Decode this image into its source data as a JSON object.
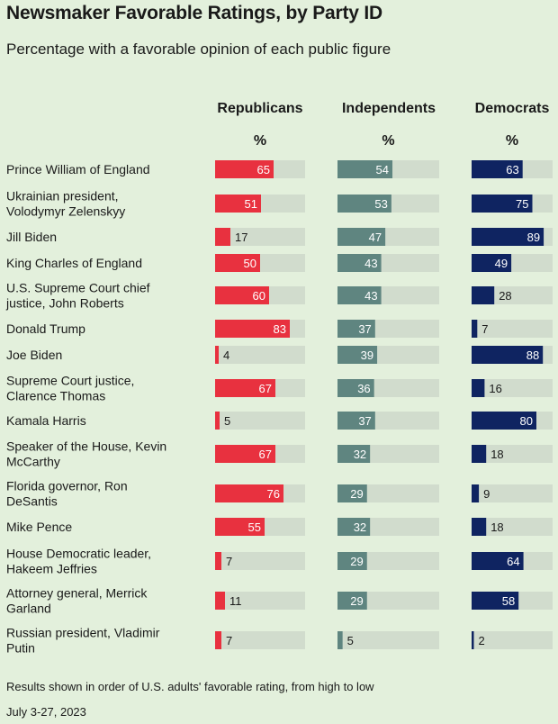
{
  "chart_data": {
    "type": "bar",
    "title": "Newsmaker Favorable Ratings, by Party ID",
    "subtitle": "Percentage with a favorable opinion of each public figure",
    "unit_label": "%",
    "xlim": [
      0,
      100
    ],
    "categories": [
      "Prince William of England",
      "Ukrainian president, Volodymyr Zelenskyy",
      "Jill Biden",
      "King Charles of England",
      "U.S. Supreme Court chief justice, John Roberts",
      "Donald Trump",
      "Joe Biden",
      "Supreme Court justice, Clarence Thomas",
      "Kamala Harris",
      "Speaker of the House, Kevin McCarthy",
      "Florida governor, Ron DeSantis",
      "Mike Pence",
      "House Democratic leader, Hakeem Jeffries",
      "Attorney general, Merrick Garland",
      "Russian president, Vladimir Putin"
    ],
    "category_lines": [
      [
        "Prince William of England"
      ],
      [
        "Ukrainian president,",
        "Volodymyr Zelenskyy"
      ],
      [
        "Jill Biden"
      ],
      [
        "King Charles of England"
      ],
      [
        "U.S. Supreme Court chief",
        "justice, John Roberts"
      ],
      [
        "Donald Trump"
      ],
      [
        "Joe Biden"
      ],
      [
        "Supreme Court justice,",
        "Clarence Thomas"
      ],
      [
        "Kamala Harris"
      ],
      [
        "Speaker of the House, Kevin",
        "McCarthy"
      ],
      [
        "Florida governor, Ron",
        "DeSantis"
      ],
      [
        "Mike Pence"
      ],
      [
        "House Democratic leader,",
        "Hakeem Jeffries"
      ],
      [
        "Attorney general, Merrick",
        "Garland"
      ],
      [
        "Russian president, Vladimir",
        "Putin"
      ]
    ],
    "series": [
      {
        "name": "Republicans",
        "color": "#e8313f",
        "values": [
          65,
          51,
          17,
          50,
          60,
          83,
          4,
          67,
          5,
          67,
          76,
          55,
          7,
          11,
          7
        ]
      },
      {
        "name": "Independents",
        "color": "#5f8580",
        "values": [
          54,
          53,
          47,
          43,
          43,
          37,
          39,
          36,
          37,
          32,
          29,
          32,
          29,
          29,
          5
        ]
      },
      {
        "name": "Democrats",
        "color": "#0f2461",
        "values": [
          63,
          75,
          89,
          49,
          28,
          7,
          88,
          16,
          80,
          18,
          9,
          18,
          64,
          58,
          2
        ]
      }
    ],
    "track_color": "#d1dccd"
  },
  "footnotes": {
    "note": "Results shown in order of U.S. adults' favorable rating, from high to low",
    "date": "July 3-27, 2023"
  }
}
